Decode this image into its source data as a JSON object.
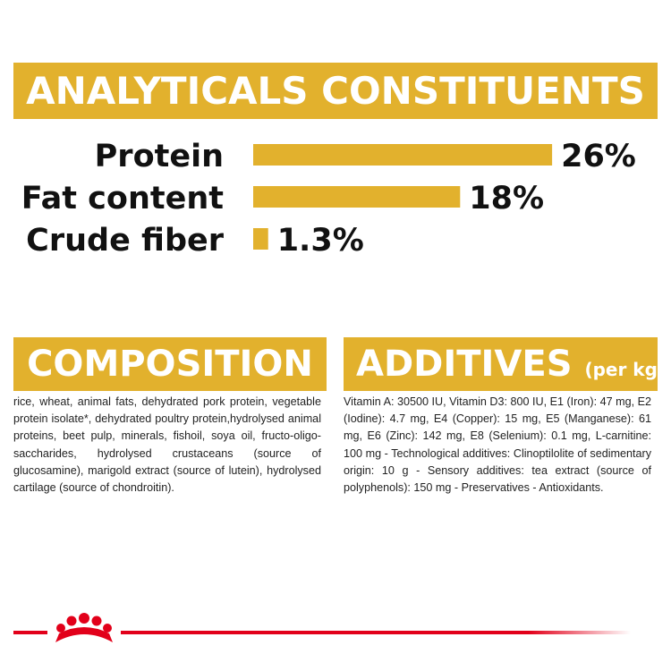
{
  "chart_data": {
    "type": "bar",
    "orientation": "horizontal",
    "title": "ANALYTICALS CONSTITUENTS",
    "categories": [
      "Protein",
      "Fat content",
      "Crude fiber"
    ],
    "values": [
      26,
      18,
      1.3
    ],
    "value_labels": [
      "26%",
      "18%",
      "1.3%"
    ],
    "color": "#e2b12d"
  },
  "composition": {
    "title": "COMPOSITION",
    "text": "rice, wheat, animal fats, dehydrated pork protein, vegetable protein isolate*, dehydrated poultry protein,hydrolysed animal proteins, beet pulp, minerals, fishoil, soya oil, fructo-oligo-saccharides, hydrolysed crustaceans (source of glucosamine), marigold extract (source of lutein), hydrolysed cartilage (source of chondroitin)."
  },
  "additives": {
    "title": "ADDITIVES",
    "subtitle": "(per kg)",
    "text": "Vitamin A: 30500 IU, Vitamin D3: 800 IU, E1 (Iron): 47 mg, E2 (Iodine): 4.7 mg, E4 (Copper): 15 mg, E5 (Manganese): 61 mg, E6 (Zinc): 142 mg, E8 (Selenium): 0.1 mg, L-carnitine: 100 mg - Technological additives: Clinoptilolite of sedimentary origin: 10 g - Sensory additives: tea extract (source of polyphenols): 150 mg - Preservatives - Antioxidants."
  }
}
